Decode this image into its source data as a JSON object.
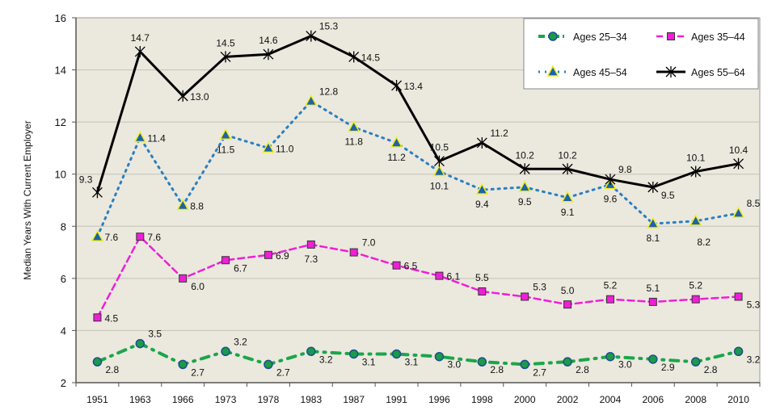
{
  "chart_data": {
    "type": "line",
    "title": "",
    "xlabel": "",
    "ylabel": "Median Years With Current Employer",
    "ylim": [
      2,
      16
    ],
    "yticks": [
      2,
      4,
      6,
      8,
      10,
      12,
      14,
      16
    ],
    "grid": true,
    "legend_position": "top-right",
    "categories": [
      "1951",
      "1963",
      "1966",
      "1973",
      "1978",
      "1983",
      "1987",
      "1991",
      "1996",
      "1998",
      "2000",
      "2002",
      "2004",
      "2006",
      "2008",
      "2010"
    ],
    "series": [
      {
        "name": "Ages 25–34",
        "color": "#1aa64a",
        "marker": "circle",
        "marker_fill": "#1a9a4a",
        "marker_edge": "#1f4e8c",
        "dash": "dash-dot",
        "values": [
          2.8,
          3.5,
          2.7,
          3.2,
          2.7,
          3.2,
          3.1,
          3.1,
          3.0,
          2.8,
          2.7,
          2.8,
          3.0,
          2.9,
          2.8,
          3.2
        ]
      },
      {
        "name": "Ages 35–44",
        "color": "#ee1fd6",
        "marker": "square",
        "marker_fill": "#ee1fd6",
        "marker_edge": "#333333",
        "dash": "dashed",
        "values": [
          4.5,
          7.6,
          6.0,
          6.7,
          6.9,
          7.3,
          7.0,
          6.5,
          6.1,
          5.5,
          5.3,
          5.0,
          5.2,
          5.1,
          5.2,
          5.3
        ]
      },
      {
        "name": "Ages 45–54",
        "color": "#2a7fc0",
        "marker": "triangle",
        "marker_fill": "#1f63a8",
        "marker_edge": "#f0f020",
        "dash": "dotted",
        "values": [
          7.6,
          11.4,
          8.8,
          11.5,
          11.0,
          12.8,
          11.8,
          11.2,
          10.1,
          9.4,
          9.5,
          9.1,
          9.6,
          8.1,
          8.2,
          8.5
        ]
      },
      {
        "name": "Ages 55–64",
        "color": "#000000",
        "marker": "asterisk",
        "marker_fill": "#000000",
        "marker_edge": "#000000",
        "dash": "solid",
        "values": [
          9.3,
          14.7,
          13.0,
          14.5,
          14.6,
          15.3,
          14.5,
          13.4,
          10.5,
          11.2,
          10.2,
          10.2,
          9.8,
          9.5,
          10.1,
          10.4
        ]
      }
    ],
    "plot_background": "#ebe8de"
  }
}
